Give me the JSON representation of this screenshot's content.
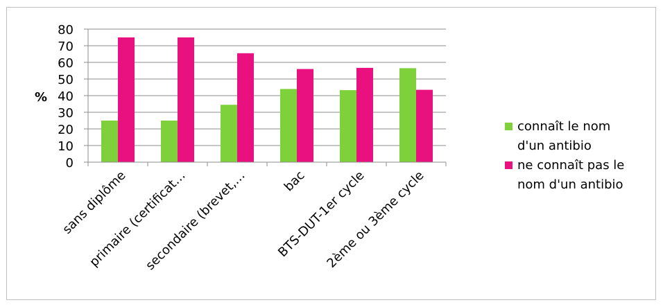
{
  "chart_data": {
    "type": "bar",
    "title": "",
    "xlabel": "",
    "ylabel": "%",
    "ylim": [
      0,
      80
    ],
    "yticks": [
      0,
      10,
      20,
      30,
      40,
      50,
      60,
      70,
      80
    ],
    "grid": true,
    "legend_position": "right",
    "categories": [
      "sans diplôme",
      "primaire (certificat…",
      "secondaire (brevet,…",
      "bac",
      "BTS-DUT-1er cycle",
      "2ème ou 3ème cycle"
    ],
    "series": [
      {
        "name": "connaît le nom d'un antibio",
        "legend_lines": [
          "connaît le nom",
          "d'un antibio"
        ],
        "color": "#7FD13B",
        "values": [
          25,
          25,
          34.5,
          44,
          43.3,
          56.5
        ]
      },
      {
        "name": "ne connaît pas le nom d'un antibio",
        "legend_lines": [
          "ne connaît pas le",
          "nom d'un antibio"
        ],
        "color": "#E8117F",
        "values": [
          75,
          75,
          65.5,
          56,
          56.7,
          43.5
        ]
      }
    ]
  }
}
